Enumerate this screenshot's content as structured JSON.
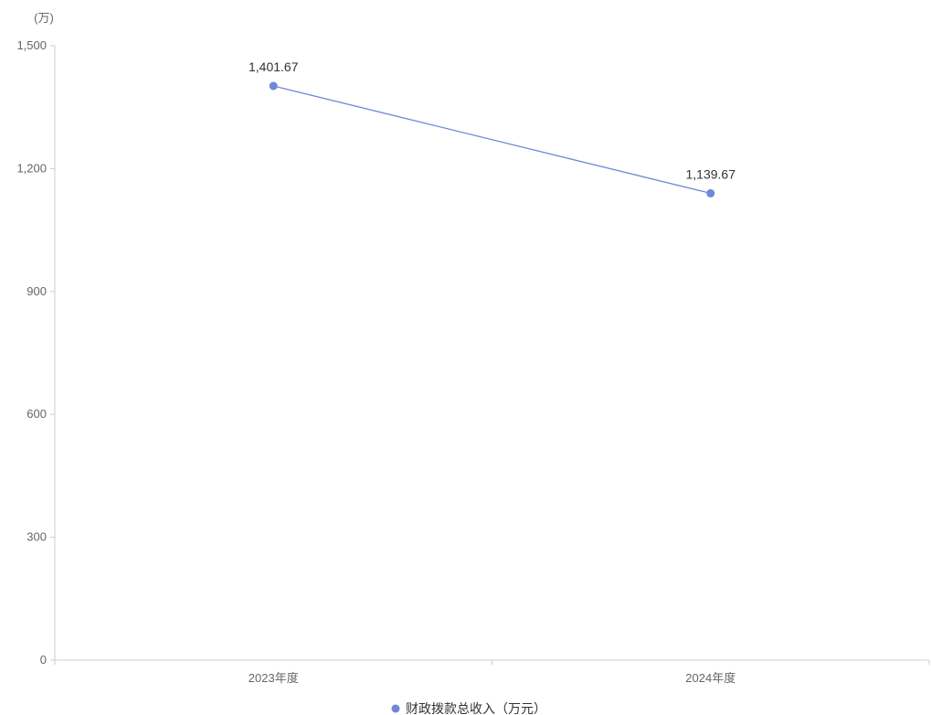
{
  "chart_data": {
    "type": "line",
    "title": "",
    "y_unit_label": "(万)",
    "categories": [
      "2023年度",
      "2024年度"
    ],
    "series": [
      {
        "name": "财政拨款总收入（万元）",
        "values": [
          1401.67,
          1139.67
        ],
        "value_labels": [
          "1,401.67",
          "1,139.67"
        ],
        "color": "#6e88d8"
      }
    ],
    "ylim": [
      0,
      1500
    ],
    "y_ticks": [
      0,
      300,
      600,
      900,
      1200,
      1500
    ],
    "y_tick_labels": [
      "0",
      "300",
      "600",
      "900",
      "1,200",
      "1,500"
    ],
    "grid": false,
    "legend_position": "bottom-center"
  }
}
